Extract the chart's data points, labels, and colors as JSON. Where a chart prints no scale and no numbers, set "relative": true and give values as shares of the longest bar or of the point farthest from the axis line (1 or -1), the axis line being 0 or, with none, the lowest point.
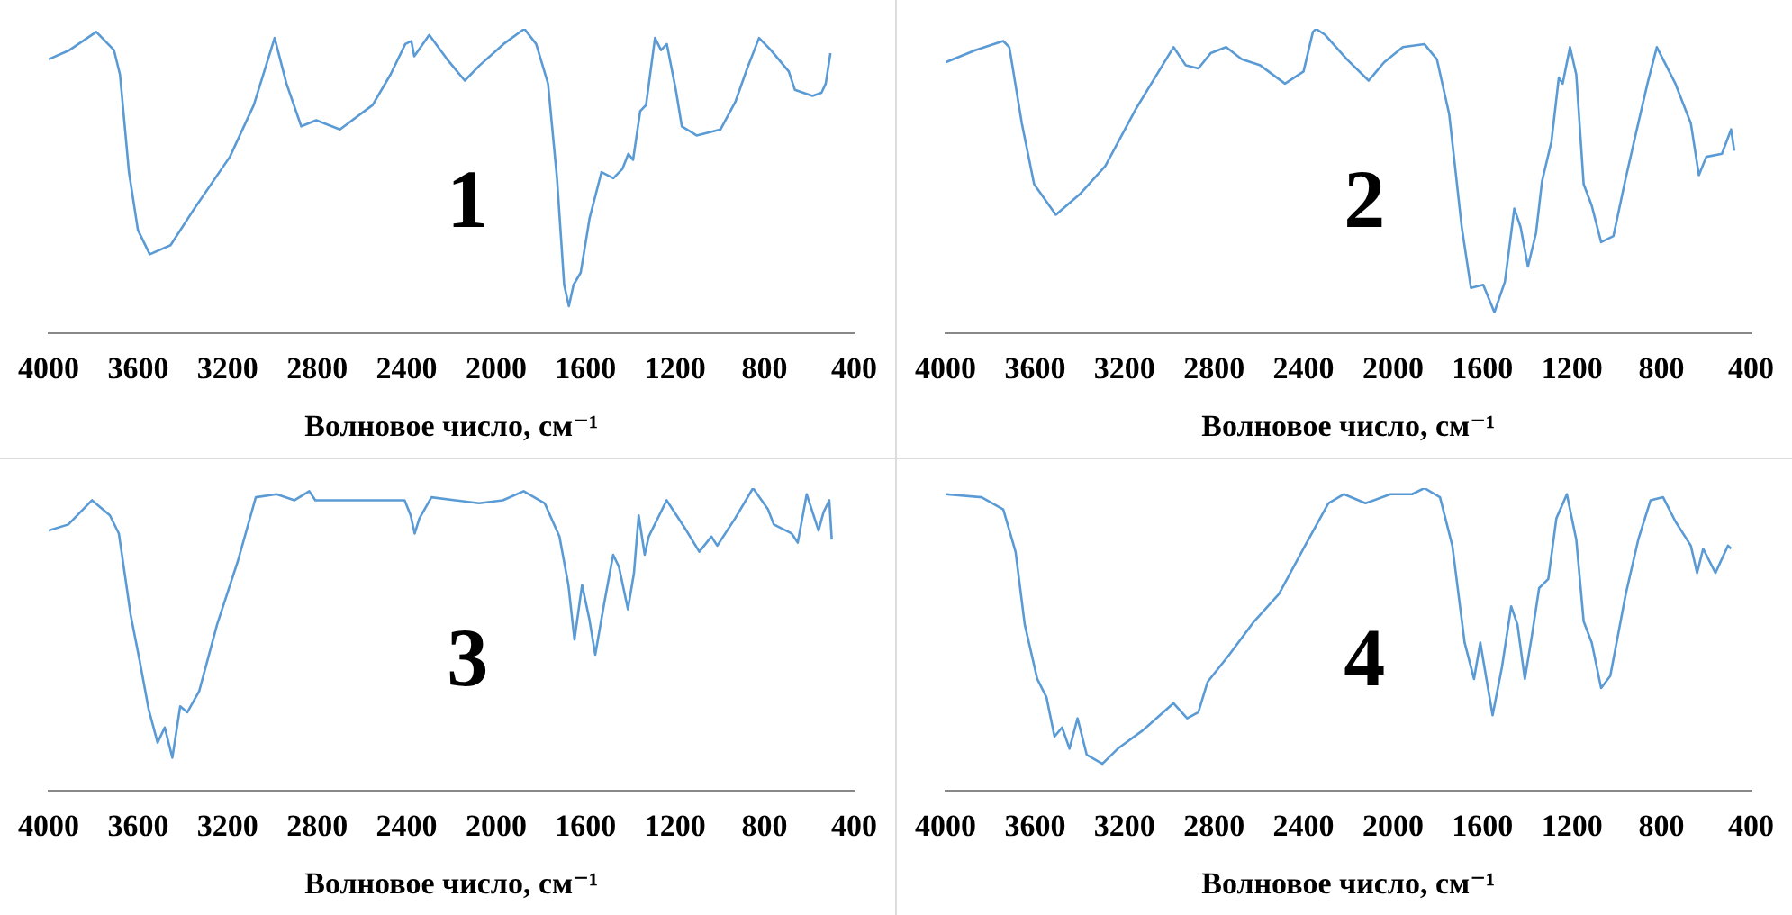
{
  "chart_data": [
    {
      "type": "line",
      "relative": true,
      "marker": "none",
      "xlabel": "Волновое число, см⁻¹",
      "annotations": [
        "1"
      ],
      "xlim": [
        4000,
        400
      ],
      "xticks": [
        4000,
        3600,
        3200,
        2800,
        2400,
        2000,
        1600,
        1200,
        800,
        400
      ],
      "x": [
        4000,
        3907,
        3787,
        3708,
        3681,
        3641,
        3601,
        3548,
        3455,
        3349,
        3190,
        3083,
        2990,
        2937,
        2871,
        2804,
        2698,
        2552,
        2472,
        2406,
        2379,
        2366,
        2299,
        2219,
        2140,
        2074,
        1967,
        1874,
        1821,
        1768,
        1728,
        1696,
        1675,
        1654,
        1622,
        1582,
        1529,
        1476,
        1436,
        1409,
        1388,
        1356,
        1330,
        1290,
        1263,
        1237,
        1197,
        1170,
        1104,
        997,
        931,
        878,
        825,
        772,
        692,
        665,
        586,
        546,
        527,
        506
      ],
      "series": [
        {
          "color": "#5b9bd5",
          "values": [
            0.9,
            0.93,
            0.99,
            0.93,
            0.85,
            0.53,
            0.34,
            0.26,
            0.29,
            0.41,
            0.58,
            0.75,
            0.97,
            0.82,
            0.68,
            0.7,
            0.67,
            0.75,
            0.85,
            0.95,
            0.96,
            0.91,
            0.98,
            0.9,
            0.83,
            0.88,
            0.95,
            1,
            0.95,
            0.82,
            0.51,
            0.16,
            0.09,
            0.16,
            0.2,
            0.38,
            0.53,
            0.51,
            0.54,
            0.59,
            0.57,
            0.73,
            0.75,
            0.97,
            0.93,
            0.95,
            0.8,
            0.68,
            0.65,
            0.67,
            0.76,
            0.87,
            0.97,
            0.93,
            0.86,
            0.8,
            0.78,
            0.79,
            0.82,
            0.92
          ]
        }
      ]
    },
    {
      "type": "line",
      "relative": true,
      "marker": "none",
      "xlabel": "Волновое число, см⁻¹",
      "annotations": [
        "2"
      ],
      "xlim": [
        4000,
        400
      ],
      "xticks": [
        4000,
        3600,
        3200,
        2800,
        2400,
        2000,
        1600,
        1200,
        800,
        400
      ],
      "x": [
        4000,
        3867,
        3742,
        3715,
        3659,
        3604,
        3507,
        3396,
        3286,
        3147,
        2981,
        2926,
        2870,
        2815,
        2746,
        2676,
        2593,
        2483,
        2400,
        2358,
        2344,
        2303,
        2206,
        2109,
        2040,
        1956,
        1860,
        1804,
        1749,
        1693,
        1652,
        1597,
        1547,
        1500,
        1458,
        1430,
        1397,
        1361,
        1334,
        1292,
        1259,
        1242,
        1209,
        1181,
        1148,
        1112,
        1070,
        1015,
        960,
        904,
        863,
        821,
        738,
        669,
        633,
        600,
        530,
        489,
        475
      ],
      "series": [
        {
          "color": "#5b9bd5",
          "values": [
            0.89,
            0.93,
            0.96,
            0.94,
            0.69,
            0.49,
            0.39,
            0.46,
            0.55,
            0.74,
            0.94,
            0.88,
            0.87,
            0.92,
            0.94,
            0.9,
            0.88,
            0.82,
            0.86,
            0.99,
            1,
            0.98,
            0.9,
            0.83,
            0.89,
            0.94,
            0.95,
            0.9,
            0.72,
            0.35,
            0.15,
            0.16,
            0.07,
            0.17,
            0.41,
            0.35,
            0.22,
            0.33,
            0.5,
            0.63,
            0.84,
            0.82,
            0.94,
            0.85,
            0.49,
            0.42,
            0.3,
            0.32,
            0.51,
            0.69,
            0.82,
            0.94,
            0.82,
            0.69,
            0.52,
            0.58,
            0.59,
            0.67,
            0.6
          ]
        }
      ]
    },
    {
      "type": "line",
      "relative": true,
      "marker": "none",
      "xlabel": "Волновое число, см⁻¹",
      "annotations": [
        "3"
      ],
      "xlim": [
        4000,
        400
      ],
      "xticks": [
        4000,
        3600,
        3200,
        2800,
        2400,
        2000,
        1600,
        1200,
        800,
        400
      ],
      "x": [
        4000,
        3912,
        3806,
        3726,
        3686,
        3633,
        3593,
        3553,
        3513,
        3481,
        3447,
        3412,
        3380,
        3327,
        3247,
        3154,
        3074,
        2981,
        2901,
        2835,
        2808,
        2662,
        2409,
        2382,
        2364,
        2343,
        2289,
        2183,
        2076,
        1970,
        1877,
        1783,
        1717,
        1677,
        1650,
        1616,
        1584,
        1557,
        1517,
        1477,
        1451,
        1411,
        1384,
        1363,
        1336,
        1318,
        1238,
        1158,
        1092,
        1038,
        1012,
        932,
        852,
        785,
        759,
        679,
        652,
        612,
        559,
        537,
        511,
        500
      ],
      "series": [
        {
          "color": "#5b9bd5",
          "values": [
            0.86,
            0.88,
            0.96,
            0.91,
            0.85,
            0.58,
            0.43,
            0.27,
            0.16,
            0.21,
            0.11,
            0.28,
            0.26,
            0.33,
            0.55,
            0.76,
            0.97,
            0.98,
            0.96,
            0.99,
            0.96,
            0.96,
            0.96,
            0.91,
            0.85,
            0.9,
            0.97,
            0.96,
            0.95,
            0.96,
            0.99,
            0.95,
            0.84,
            0.68,
            0.5,
            0.68,
            0.57,
            0.45,
            0.62,
            0.78,
            0.74,
            0.6,
            0.72,
            0.91,
            0.78,
            0.84,
            0.96,
            0.87,
            0.79,
            0.84,
            0.81,
            0.9,
            1,
            0.93,
            0.88,
            0.85,
            0.82,
            0.98,
            0.86,
            0.92,
            0.96,
            0.83
          ]
        }
      ]
    },
    {
      "type": "line",
      "relative": true,
      "marker": "none",
      "xlabel": "Волновое число, см⁻¹",
      "annotations": [
        "4"
      ],
      "xlim": [
        4000,
        400
      ],
      "xticks": [
        4000,
        3600,
        3200,
        2800,
        2400,
        2000,
        1600,
        1200,
        800,
        400
      ],
      "x": [
        4000,
        3839,
        3742,
        3687,
        3646,
        3590,
        3549,
        3513,
        3479,
        3446,
        3410,
        3369,
        3299,
        3230,
        3119,
        2981,
        2920,
        2870,
        2829,
        2732,
        2621,
        2510,
        2386,
        2289,
        2219,
        2123,
        2012,
        1915,
        1860,
        1790,
        1735,
        1680,
        1638,
        1610,
        1555,
        1513,
        1472,
        1444,
        1411,
        1380,
        1347,
        1306,
        1270,
        1223,
        1181,
        1148,
        1112,
        1070,
        1029,
        960,
        904,
        849,
        793,
        738,
        669,
        641,
        614,
        559,
        503,
        489
      ],
      "series": [
        {
          "color": "#5b9bd5",
          "values": [
            0.98,
            0.97,
            0.93,
            0.79,
            0.55,
            0.37,
            0.31,
            0.18,
            0.21,
            0.14,
            0.24,
            0.12,
            0.09,
            0.14,
            0.2,
            0.29,
            0.24,
            0.26,
            0.36,
            0.45,
            0.56,
            0.65,
            0.82,
            0.95,
            0.98,
            0.95,
            0.98,
            0.98,
            1,
            0.97,
            0.81,
            0.49,
            0.37,
            0.49,
            0.25,
            0.41,
            0.61,
            0.55,
            0.37,
            0.51,
            0.67,
            0.7,
            0.9,
            0.98,
            0.83,
            0.56,
            0.49,
            0.34,
            0.38,
            0.65,
            0.83,
            0.96,
            0.97,
            0.89,
            0.81,
            0.72,
            0.8,
            0.72,
            0.81,
            0.8
          ]
        }
      ]
    }
  ]
}
